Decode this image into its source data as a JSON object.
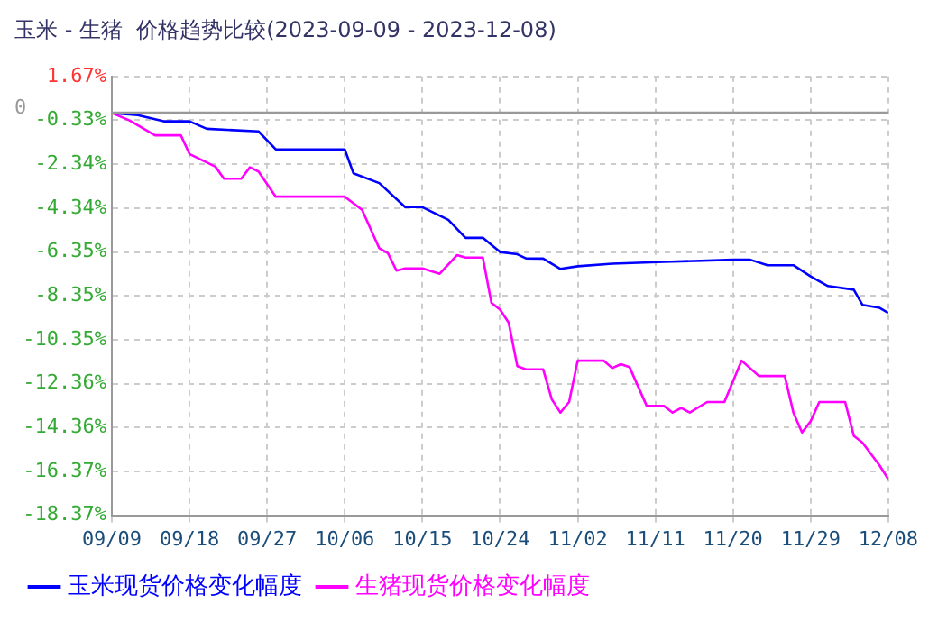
{
  "chart_data": {
    "type": "line",
    "title": "玉米 - 生猪  价格趋势比较(2023-09-09 - 2023-12-08)",
    "series": [
      {
        "name": "玉米现货价格变化幅度",
        "color": "#0000ff",
        "x": [
          "2023-09-09",
          "2023-09-12",
          "2023-09-15",
          "2023-09-18",
          "2023-09-20",
          "2023-09-26",
          "2023-09-28",
          "2023-10-06",
          "2023-10-07",
          "2023-10-10",
          "2023-10-13",
          "2023-10-15",
          "2023-10-18",
          "2023-10-20",
          "2023-10-22",
          "2023-10-24",
          "2023-10-26",
          "2023-10-27",
          "2023-10-29",
          "2023-10-31",
          "2023-11-02",
          "2023-11-06",
          "2023-11-12",
          "2023-11-20",
          "2023-11-22",
          "2023-11-24",
          "2023-11-27",
          "2023-11-29",
          "2023-12-01",
          "2023-12-04",
          "2023-12-05",
          "2023-12-07",
          "2023-12-08"
        ],
        "values": [
          0,
          -0.1,
          -0.38,
          -0.38,
          -0.72,
          -0.84,
          -1.66,
          -1.66,
          -2.75,
          -3.2,
          -4.3,
          -4.3,
          -4.88,
          -5.7,
          -5.7,
          -6.35,
          -6.45,
          -6.64,
          -6.65,
          -7.12,
          -7.0,
          -6.88,
          -6.8,
          -6.7,
          -6.7,
          -6.95,
          -6.95,
          -7.46,
          -7.9,
          -8.07,
          -8.76,
          -8.9,
          -9.13
        ]
      },
      {
        "name": "生猪现货价格变化幅度",
        "color": "#ff00ff",
        "x": [
          "2023-09-09",
          "2023-09-11",
          "2023-09-14",
          "2023-09-17",
          "2023-09-18",
          "2023-09-21",
          "2023-09-22",
          "2023-09-24",
          "2023-09-25",
          "2023-09-26",
          "2023-09-28",
          "2023-10-06",
          "2023-10-08",
          "2023-10-10",
          "2023-10-11",
          "2023-10-12",
          "2023-10-13",
          "2023-10-15",
          "2023-10-17",
          "2023-10-19",
          "2023-10-20",
          "2023-10-22",
          "2023-10-23",
          "2023-10-24",
          "2023-10-25",
          "2023-10-26",
          "2023-10-27",
          "2023-10-29",
          "2023-10-30",
          "2023-10-31",
          "2023-11-01",
          "2023-11-02",
          "2023-11-05",
          "2023-11-06",
          "2023-11-07",
          "2023-11-08",
          "2023-11-10",
          "2023-11-12",
          "2023-11-13",
          "2023-11-14",
          "2023-11-15",
          "2023-11-17",
          "2023-11-19",
          "2023-11-21",
          "2023-11-23",
          "2023-11-26",
          "2023-11-27",
          "2023-11-28",
          "2023-11-29",
          "2023-11-30",
          "2023-12-03",
          "2023-12-04",
          "2023-12-05",
          "2023-12-07",
          "2023-12-08"
        ],
        "values": [
          0,
          -0.33,
          -1.02,
          -1.02,
          -1.87,
          -2.45,
          -3.0,
          -3.0,
          -2.48,
          -2.67,
          -3.82,
          -3.82,
          -4.42,
          -6.18,
          -6.4,
          -7.2,
          -7.1,
          -7.1,
          -7.34,
          -6.49,
          -6.6,
          -6.6,
          -8.67,
          -8.98,
          -9.58,
          -11.56,
          -11.71,
          -11.71,
          -13.08,
          -13.68,
          -13.2,
          -11.31,
          -11.31,
          -11.65,
          -11.47,
          -11.6,
          -13.38,
          -13.38,
          -13.68,
          -13.47,
          -13.68,
          -13.2,
          -13.2,
          -11.31,
          -12.01,
          -12.01,
          -13.68,
          -14.59,
          -14.08,
          -13.2,
          -13.2,
          -14.74,
          -15.05,
          -16.1,
          -16.72
        ]
      }
    ],
    "xlim": [
      "2023-09-09",
      "2023-12-08"
    ],
    "xticks": [
      {
        "value": "2023-09-09",
        "label": "09/09"
      },
      {
        "value": "2023-09-18",
        "label": "09/18"
      },
      {
        "value": "2023-09-27",
        "label": "09/27"
      },
      {
        "value": "2023-10-06",
        "label": "10/06"
      },
      {
        "value": "2023-10-15",
        "label": "10/15"
      },
      {
        "value": "2023-10-24",
        "label": "10/24"
      },
      {
        "value": "2023-11-02",
        "label": "11/02"
      },
      {
        "value": "2023-11-11",
        "label": "11/11"
      },
      {
        "value": "2023-11-20",
        "label": "11/20"
      },
      {
        "value": "2023-11-29",
        "label": "11/29"
      },
      {
        "value": "2023-12-08",
        "label": "12/08"
      }
    ],
    "ylim": [
      -18.37,
      1.67
    ],
    "yticks": [
      {
        "value": 1.67,
        "label": "1.67%"
      },
      {
        "value": -0.33,
        "label": "-0.33%"
      },
      {
        "value": -2.34,
        "label": "-2.34%"
      },
      {
        "value": -4.34,
        "label": "-4.34%"
      },
      {
        "value": -6.35,
        "label": "-6.35%"
      },
      {
        "value": -8.35,
        "label": "-8.35%"
      },
      {
        "value": -10.35,
        "label": "-10.35%"
      },
      {
        "value": -12.36,
        "label": "-12.36%"
      },
      {
        "value": -14.36,
        "label": "-14.36%"
      },
      {
        "value": -16.37,
        "label": "-16.37%"
      },
      {
        "value": -18.37,
        "label": "-18.37%"
      }
    ],
    "ref_lines": [
      {
        "axis": "y",
        "value": 0,
        "label": "0",
        "color": "#999999"
      }
    ],
    "grid": true,
    "legend": "bottom",
    "marker": "none",
    "line_style": "solid"
  }
}
